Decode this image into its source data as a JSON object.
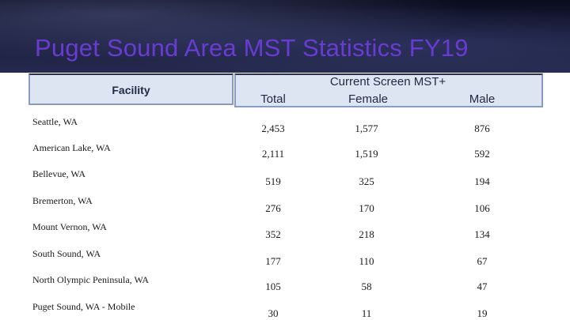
{
  "title": "Puget Sound Area MST Statistics FY19",
  "table": {
    "facility_header": "Facility",
    "group_header": "Current Screen MST+",
    "columns": [
      "Total",
      "Female",
      "Male"
    ],
    "rows": [
      {
        "facility": "Seattle, WA",
        "total": "2,453",
        "female": "1,577",
        "male": "876"
      },
      {
        "facility": "American Lake, WA",
        "total": "2,111",
        "female": "1,519",
        "male": "592"
      },
      {
        "facility": "Bellevue, WA",
        "total": "519",
        "female": "325",
        "male": "194"
      },
      {
        "facility": "Bremerton, WA",
        "total": "276",
        "female": "170",
        "male": "106"
      },
      {
        "facility": "Mount Vernon, WA",
        "total": "352",
        "female": "218",
        "male": "134"
      },
      {
        "facility": "South Sound, WA",
        "total": "177",
        "female": "110",
        "male": "67"
      },
      {
        "facility": "North Olympic Peninsula, WA",
        "total": "105",
        "female": "58",
        "male": "47"
      },
      {
        "facility": "Puget Sound, WA - Mobile",
        "total": "30",
        "female": "11",
        "male": "19"
      }
    ]
  }
}
